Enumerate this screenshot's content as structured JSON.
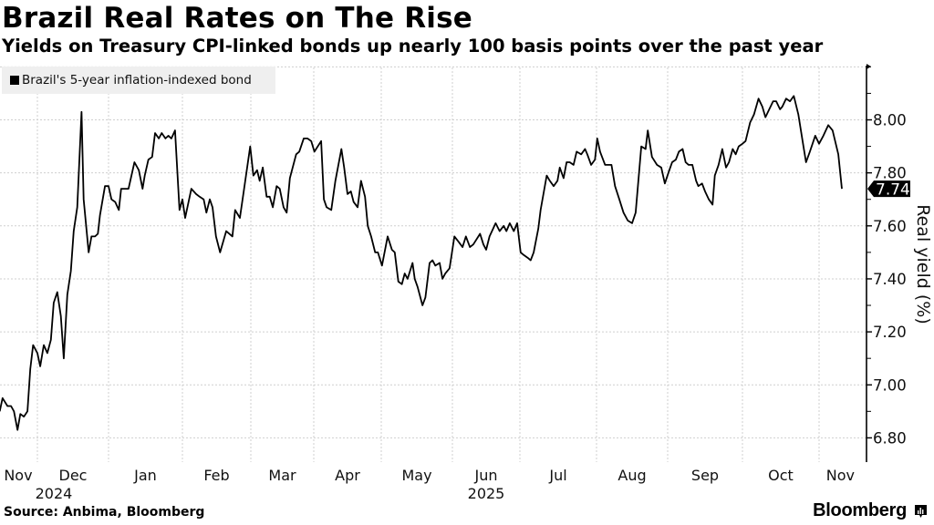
{
  "header": {
    "title": "Brazil Real Rates on The Rise",
    "subtitle": "Yields on Treasury CPI-linked bonds up nearly 100 basis points over the past year"
  },
  "footer": {
    "source": "Source: Anbima, Bloomberg",
    "brand": "Bloomberg",
    "brand_icon": "bloomberg-chart-icon"
  },
  "chart_data": {
    "type": "line",
    "title": "Brazil Real Rates on The Rise",
    "subtitle": "Yields on Treasury CPI-linked bonds up nearly 100 basis points over the past year",
    "xlabel": "",
    "ylabel": "Real yield (%)",
    "x_unit": "months since 2024-11-01",
    "xlim": [
      0.47,
      12.5
    ],
    "ylim": [
      6.71,
      8.2
    ],
    "yticks": [
      6.8,
      7.0,
      7.2,
      7.4,
      7.6,
      7.8,
      8.0
    ],
    "ytick_labels": [
      "6.80",
      "7.00",
      "7.20",
      "7.40",
      "7.60",
      "7.80",
      "8.00"
    ],
    "y_minor_ticks": [
      6.9,
      7.1,
      7.3,
      7.5,
      7.7,
      7.9,
      8.1,
      8.2
    ],
    "month_boundaries": [
      1,
      2,
      3,
      4,
      5,
      6,
      7,
      8,
      9,
      10,
      11,
      12
    ],
    "xtick_labels": [
      {
        "label": "Nov",
        "pos": 0.73
      },
      {
        "label": "Dec",
        "pos": 1.5
      },
      {
        "label": "Jan",
        "pos": 2.5
      },
      {
        "label": "Feb",
        "pos": 3.5
      },
      {
        "label": "Mar",
        "pos": 4.5
      },
      {
        "label": "Apr",
        "pos": 5.5
      },
      {
        "label": "May",
        "pos": 6.5
      },
      {
        "label": "Jun",
        "pos": 7.5
      },
      {
        "label": "Jul",
        "pos": 8.5
      },
      {
        "label": "Aug",
        "pos": 9.5
      },
      {
        "label": "Sep",
        "pos": 10.5
      },
      {
        "label": "Oct",
        "pos": 11.5
      },
      {
        "label": "Nov",
        "pos": 12.3
      }
    ],
    "year_labels": [
      {
        "label": "2024",
        "pos": 1.23
      },
      {
        "label": "2025",
        "pos": 7.5
      }
    ],
    "grid": true,
    "legend": {
      "position": "top-left",
      "entries": [
        "Brazil's 5-year inflation-indexed bond"
      ]
    },
    "last_value_label": "7.74",
    "series": [
      {
        "name": "Brazil's 5-year inflation-indexed bond",
        "color": "#000000",
        "x": [
          0.47,
          0.51,
          0.58,
          0.63,
          0.67,
          0.72,
          0.76,
          0.81,
          0.86,
          0.9,
          0.94,
          1.0,
          1.04,
          1.09,
          1.14,
          1.19,
          1.23,
          1.28,
          1.33,
          1.37,
          1.42,
          1.47,
          1.51,
          1.56,
          1.62,
          1.65,
          1.72,
          1.76,
          1.81,
          1.85,
          1.88,
          1.95,
          2.0,
          2.04,
          2.09,
          2.14,
          2.17,
          2.27,
          2.35,
          2.41,
          2.46,
          2.49,
          2.54,
          2.59,
          2.63,
          2.68,
          2.72,
          2.77,
          2.81,
          2.85,
          2.9,
          2.96,
          3.0,
          3.04,
          3.13,
          3.2,
          3.25,
          3.31,
          3.35,
          3.4,
          3.44,
          3.49,
          3.55,
          3.64,
          3.73,
          3.77,
          3.84,
          3.89,
          3.99,
          4.04,
          4.1,
          4.14,
          4.19,
          4.25,
          4.3,
          4.35,
          4.41,
          4.46,
          4.52,
          4.57,
          4.62,
          4.72,
          4.77,
          4.84,
          4.9,
          4.96,
          5.01,
          5.11,
          5.15,
          5.19,
          5.26,
          5.32,
          5.41,
          5.45,
          5.5,
          5.55,
          5.59,
          5.65,
          5.7,
          5.76,
          5.8,
          5.85,
          5.91,
          5.95,
          6.01,
          6.09,
          6.15,
          6.19,
          6.24,
          6.29,
          6.33,
          6.37,
          6.44,
          6.47,
          6.51,
          6.58,
          6.62,
          6.68,
          6.72,
          6.76,
          6.82,
          6.86,
          6.9,
          6.96,
          7.03,
          7.09,
          7.15,
          7.2,
          7.26,
          7.31,
          7.41,
          7.46,
          7.5,
          7.55,
          7.64,
          7.7,
          7.76,
          7.8,
          7.85,
          7.91,
          7.96,
          8.01,
          8.05,
          8.1,
          8.14,
          8.18,
          8.24,
          8.27,
          8.35,
          8.39,
          8.44,
          8.49,
          8.52,
          8.57,
          8.61,
          8.65,
          8.7,
          8.74,
          8.8,
          8.85,
          8.88,
          8.93,
          8.98,
          9.01,
          9.05,
          9.12,
          9.15,
          9.21,
          9.26,
          9.32,
          9.38,
          9.44,
          9.5,
          9.55,
          9.63,
          9.69,
          9.72,
          9.78,
          9.85,
          9.91,
          9.96,
          10.01,
          10.06,
          10.11,
          10.15,
          10.2,
          10.24,
          10.28,
          10.33,
          10.38,
          10.41,
          10.46,
          10.5,
          10.55,
          10.6,
          10.63,
          10.68,
          10.73,
          10.78,
          10.82,
          10.87,
          10.91,
          10.95,
          11.0,
          11.04,
          11.1,
          11.15,
          11.21,
          11.26,
          11.3,
          11.35,
          11.4,
          11.44,
          11.49,
          11.52,
          11.57,
          11.62,
          11.67,
          11.73,
          11.79,
          11.83,
          11.88,
          11.95,
          12.0,
          12.06,
          12.13,
          12.19,
          12.27,
          12.32
        ],
        "values": [
          6.9,
          6.95,
          6.92,
          6.92,
          6.9,
          6.83,
          6.89,
          6.88,
          6.9,
          7.06,
          7.15,
          7.12,
          7.07,
          7.15,
          7.12,
          7.17,
          7.31,
          7.35,
          7.26,
          7.1,
          7.34,
          7.43,
          7.58,
          7.67,
          8.03,
          7.7,
          7.5,
          7.56,
          7.56,
          7.57,
          7.64,
          7.75,
          7.75,
          7.7,
          7.69,
          7.66,
          7.74,
          7.74,
          7.84,
          7.81,
          7.74,
          7.79,
          7.85,
          7.86,
          7.95,
          7.93,
          7.95,
          7.93,
          7.94,
          7.93,
          7.96,
          7.66,
          7.7,
          7.63,
          7.74,
          7.72,
          7.71,
          7.7,
          7.65,
          7.7,
          7.67,
          7.56,
          7.5,
          7.58,
          7.56,
          7.66,
          7.63,
          7.72,
          7.9,
          7.79,
          7.81,
          7.77,
          7.82,
          7.71,
          7.71,
          7.67,
          7.75,
          7.74,
          7.67,
          7.65,
          7.78,
          7.87,
          7.88,
          7.93,
          7.93,
          7.92,
          7.88,
          7.92,
          7.7,
          7.67,
          7.66,
          7.77,
          7.89,
          7.82,
          7.72,
          7.73,
          7.69,
          7.67,
          7.77,
          7.71,
          7.6,
          7.56,
          7.5,
          7.5,
          7.45,
          7.56,
          7.51,
          7.5,
          7.39,
          7.38,
          7.42,
          7.4,
          7.46,
          7.4,
          7.37,
          7.3,
          7.33,
          7.46,
          7.47,
          7.45,
          7.46,
          7.4,
          7.42,
          7.44,
          7.56,
          7.54,
          7.52,
          7.56,
          7.52,
          7.53,
          7.57,
          7.53,
          7.51,
          7.56,
          7.61,
          7.58,
          7.6,
          7.58,
          7.61,
          7.58,
          7.61,
          7.5,
          7.49,
          7.48,
          7.47,
          7.5,
          7.59,
          7.66,
          7.79,
          7.77,
          7.75,
          7.77,
          7.82,
          7.78,
          7.84,
          7.84,
          7.83,
          7.88,
          7.87,
          7.89,
          7.87,
          7.83,
          7.85,
          7.93,
          7.88,
          7.83,
          7.83,
          7.83,
          7.75,
          7.7,
          7.65,
          7.62,
          7.61,
          7.65,
          7.9,
          7.89,
          7.96,
          7.86,
          7.83,
          7.82,
          7.76,
          7.8,
          7.84,
          7.85,
          7.88,
          7.89,
          7.84,
          7.83,
          7.83,
          7.77,
          7.75,
          7.76,
          7.73,
          7.7,
          7.68,
          7.79,
          7.83,
          7.89,
          7.82,
          7.84,
          7.89,
          7.87,
          7.9,
          7.91,
          7.92,
          7.99,
          8.02,
          8.08,
          8.05,
          8.01,
          8.04,
          8.07,
          8.07,
          8.04,
          8.05,
          8.08,
          8.07,
          8.09,
          8.02,
          7.91,
          7.84,
          7.88,
          7.94,
          7.91,
          7.94,
          7.98,
          7.96,
          7.87,
          7.74
        ]
      }
    ]
  }
}
